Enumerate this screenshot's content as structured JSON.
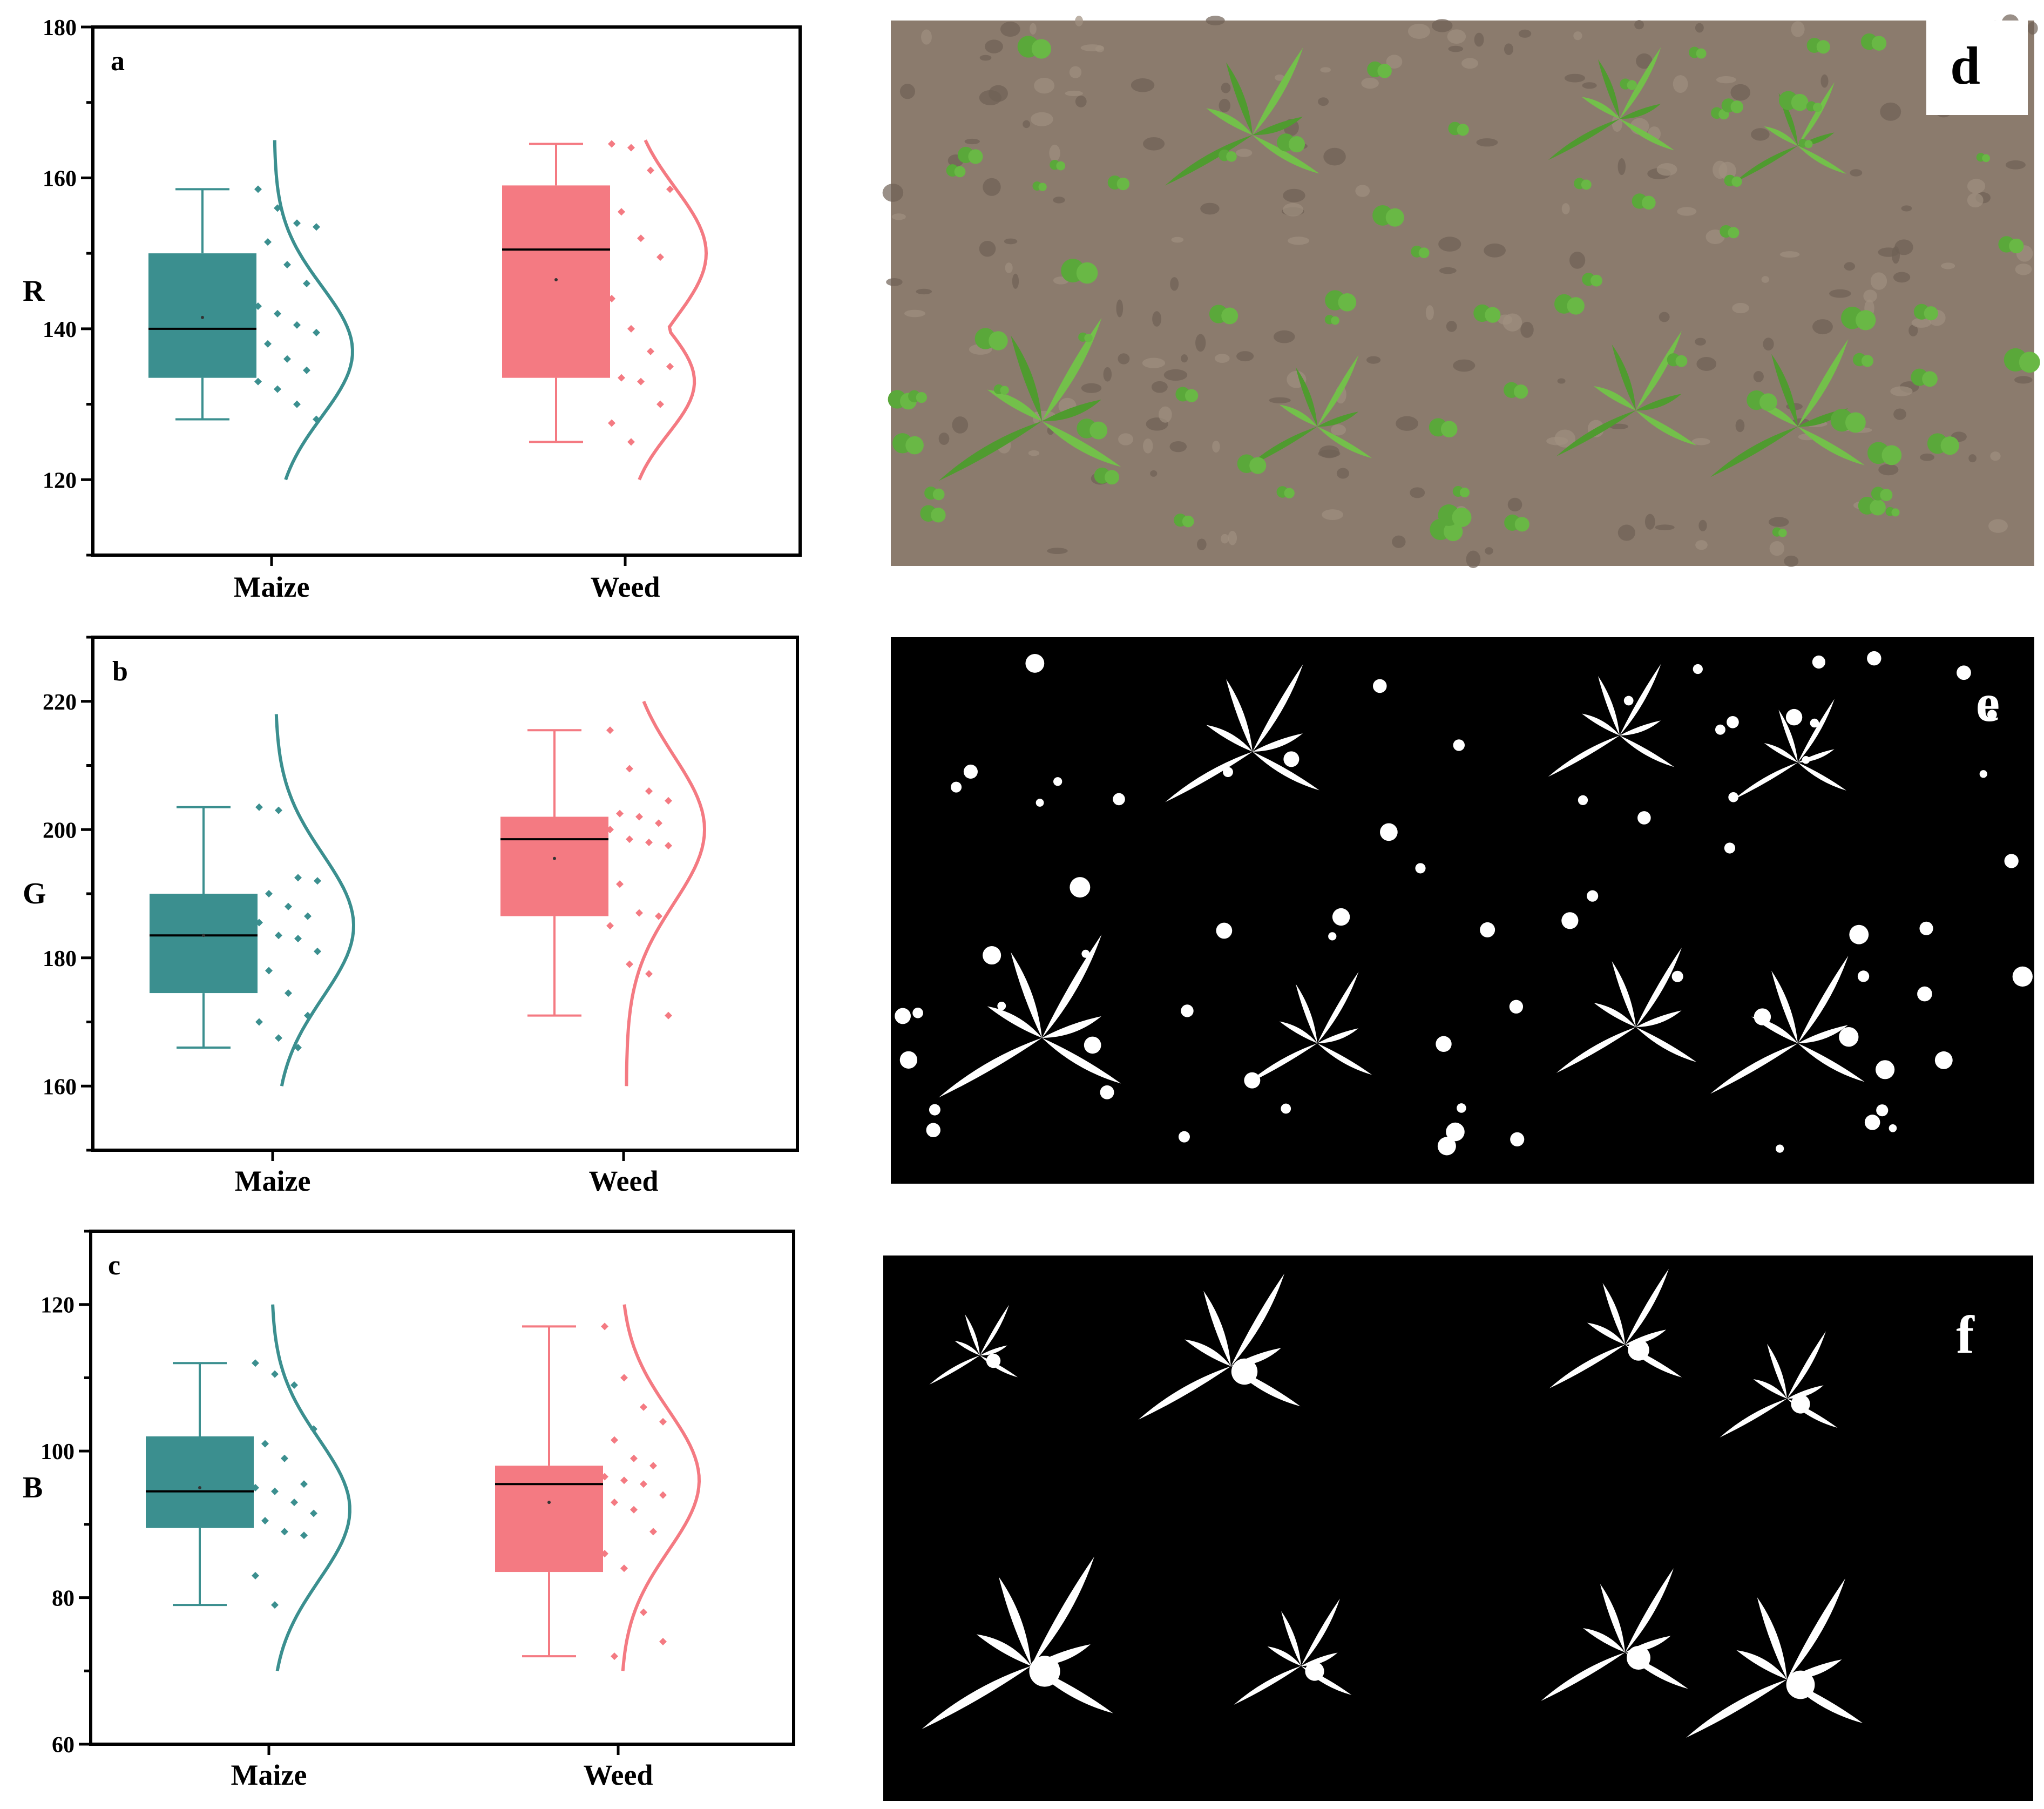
{
  "colors": {
    "maize": "#3b8f8f",
    "weed": "#f47a82",
    "black": "#000000",
    "white": "#ffffff",
    "soil": "#8a7a6c",
    "plant": "#5cae3a"
  },
  "chart_data": [
    {
      "type": "box",
      "panel": "a",
      "ylabel": "R",
      "categories": [
        "Maize",
        "Weed"
      ],
      "ylim": [
        110,
        180
      ],
      "yticks": [
        120,
        140,
        160,
        180
      ],
      "series": [
        {
          "name": "Maize",
          "whisker_low": 128,
          "q1": 133.5,
          "median": 140,
          "q3": 150,
          "whisker_high": 158.5,
          "mean": 141.5,
          "points": [
            158.5,
            156,
            154,
            153.5,
            151.5,
            148.5,
            146,
            143,
            142,
            140.5,
            139.5,
            138,
            136,
            134.5,
            133,
            132,
            130,
            128
          ],
          "curve": {
            "min": 120,
            "max": 165,
            "peak": 137
          }
        },
        {
          "name": "Weed",
          "whisker_low": 125,
          "q1": 133.5,
          "median": 150.5,
          "q3": 159,
          "whisker_high": 164.5,
          "mean": 146.5,
          "points": [
            164.5,
            164,
            161,
            158.5,
            155.5,
            152,
            149.5,
            144,
            140,
            137,
            135,
            133.5,
            133,
            130,
            127.5,
            125
          ],
          "curve": {
            "min": 120,
            "max": 165,
            "peak": 150,
            "peak2": 133
          }
        }
      ]
    },
    {
      "type": "box",
      "panel": "b",
      "ylabel": "G",
      "categories": [
        "Maize",
        "Weed"
      ],
      "ylim": [
        150,
        230
      ],
      "yticks": [
        160,
        180,
        200,
        220
      ],
      "series": [
        {
          "name": "Maize",
          "whisker_low": 166,
          "q1": 174.5,
          "median": 183.5,
          "q3": 190,
          "whisker_high": 203.5,
          "mean": 183.5,
          "points": [
            203.5,
            203,
            192.5,
            192,
            190,
            188,
            186.5,
            185.5,
            183.5,
            183,
            181,
            178,
            174.5,
            171,
            170,
            167.5,
            166
          ],
          "curve": {
            "min": 160,
            "max": 218,
            "peak": 185
          }
        },
        {
          "name": "Weed",
          "whisker_low": 171,
          "q1": 186.5,
          "median": 198.5,
          "q3": 202,
          "whisker_high": 215.5,
          "mean": 195.5,
          "points": [
            215.5,
            209.5,
            206,
            204.5,
            202.5,
            202,
            201,
            200,
            198.5,
            198,
            197.5,
            191.5,
            187,
            186.5,
            185,
            179,
            177.5,
            171
          ],
          "curve": {
            "min": 160,
            "max": 220,
            "peak": 200
          }
        }
      ]
    },
    {
      "type": "box",
      "panel": "c",
      "ylabel": "B",
      "categories": [
        "Maize",
        "Weed"
      ],
      "ylim": [
        60,
        130
      ],
      "yticks": [
        60,
        80,
        100,
        120
      ],
      "series": [
        {
          "name": "Maize",
          "whisker_low": 79,
          "q1": 89.5,
          "median": 94.5,
          "q3": 102,
          "whisker_high": 112,
          "mean": 95,
          "points": [
            112,
            110.5,
            109,
            103,
            101,
            99,
            95.5,
            95,
            94.5,
            93,
            91.5,
            90.5,
            89,
            88.5,
            83,
            79
          ],
          "curve": {
            "min": 70,
            "max": 120,
            "peak": 92
          }
        },
        {
          "name": "Weed",
          "whisker_low": 72,
          "q1": 83.5,
          "median": 95.5,
          "q3": 98,
          "whisker_high": 117,
          "mean": 93,
          "points": [
            117,
            110,
            106,
            104,
            101.5,
            99,
            98,
            96.5,
            96,
            95.5,
            94,
            93,
            92,
            89,
            86,
            84,
            78,
            74,
            72
          ],
          "curve": {
            "min": 70,
            "max": 120,
            "peak": 96
          }
        }
      ]
    }
  ],
  "images": [
    {
      "label": "d",
      "kind": "rgb-field-photo"
    },
    {
      "label": "e",
      "kind": "binary-mask-all-vegetation"
    },
    {
      "label": "f",
      "kind": "binary-mask-large-plants"
    }
  ]
}
